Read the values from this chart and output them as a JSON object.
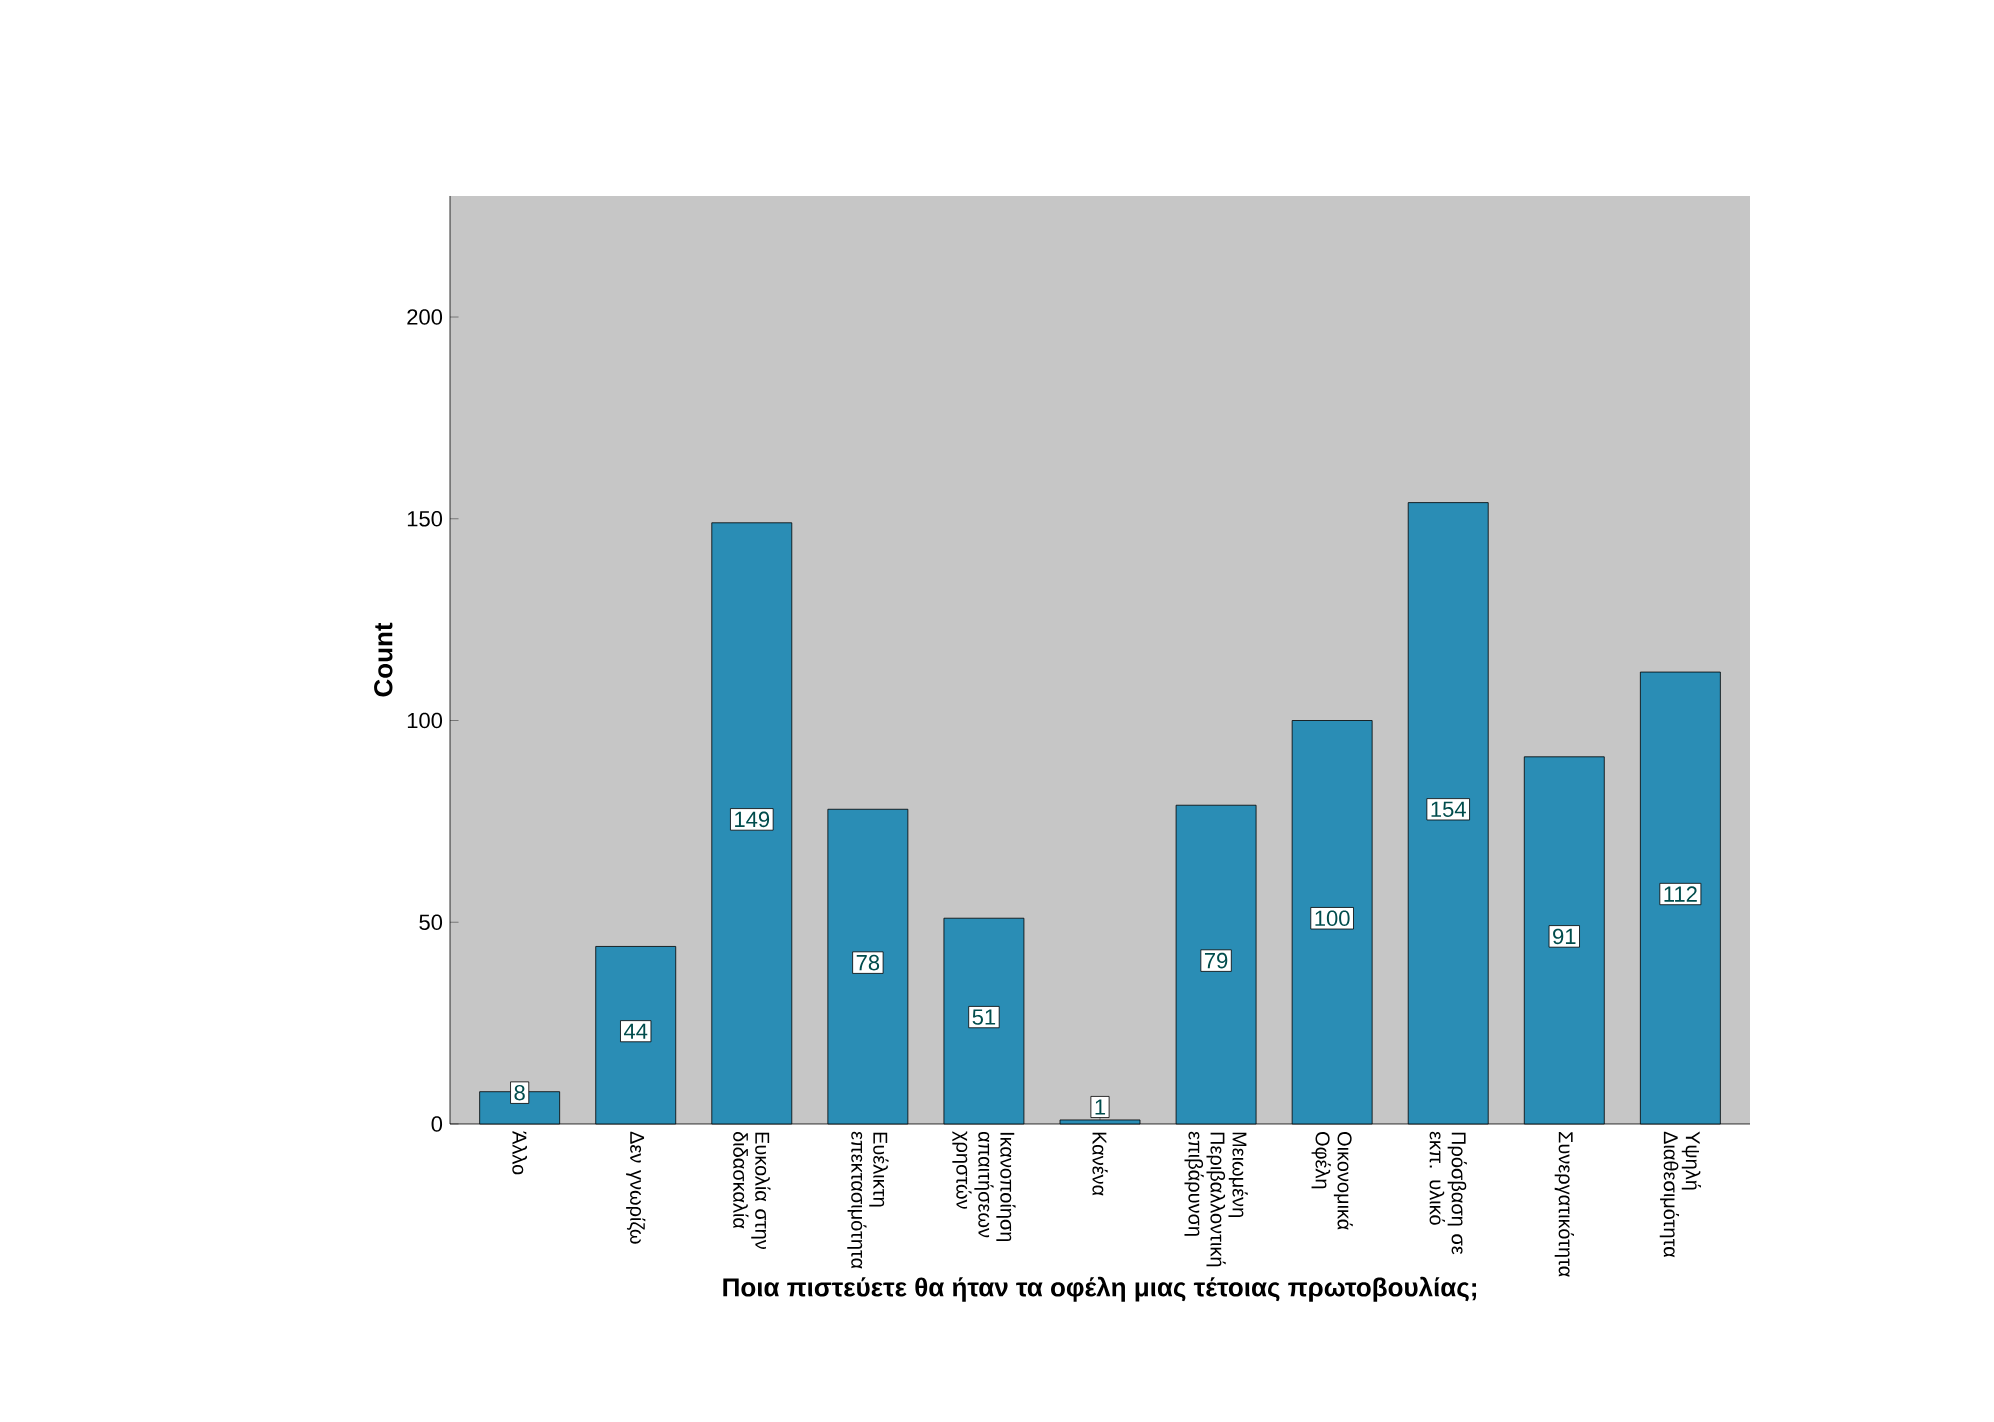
{
  "chart_data": {
    "type": "bar",
    "xlabel": "Ποια πιστεύετε θα ήταν τα οφέλη μιας τέτοιας πρωτοβουλίας;",
    "ylabel": "Count",
    "categories": [
      "Άλλο",
      "Δεν γνωρίζω",
      "Ευκολία στην διδασκαλία",
      "Ευέλικτη επεκτασιμότητα",
      "Ικανοποίηση απαιτήσεων χρηστών",
      "Κανένα",
      "Μειωμένη Περιβαλλοντική επιβάρυνση",
      "Οικονομικά Οφέλη",
      "Πρόσβαση σε εκπ. υλικό",
      "Συνεργατικότητα",
      "Υψηλή Διαθεσιμότητα"
    ],
    "values": [
      8,
      44,
      149,
      78,
      51,
      1,
      79,
      100,
      154,
      91,
      112
    ],
    "color": "#2a8db5",
    "data_labels": true,
    "ylim": [
      0,
      230
    ],
    "yticks": [
      0,
      50,
      100,
      150,
      200
    ],
    "grid": false
  }
}
